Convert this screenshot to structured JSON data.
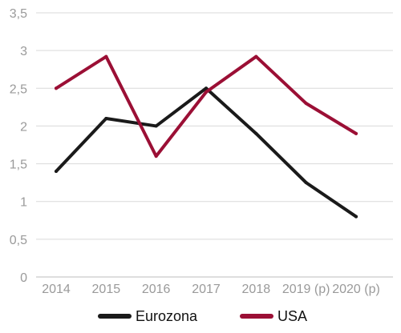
{
  "chart_data": {
    "type": "line",
    "title": "",
    "xlabel": "",
    "ylabel": "",
    "categories": [
      "2014",
      "2015",
      "2016",
      "2017",
      "2018",
      "2019 (p)",
      "2020 (p)"
    ],
    "ylim": [
      0,
      3.5
    ],
    "yticks": [
      0,
      0.5,
      1,
      1.5,
      2,
      2.5,
      3,
      3.5
    ],
    "ytick_labels": [
      "0",
      "0,5",
      "1",
      "1,5",
      "2",
      "2,5",
      "3",
      "3,5"
    ],
    "grid": true,
    "legend": "bottom",
    "series": [
      {
        "name": "Eurozona",
        "color": "#1a1a1a",
        "values": [
          1.4,
          2.1,
          2.0,
          2.5,
          1.9,
          1.25,
          0.8
        ]
      },
      {
        "name": "USA",
        "color": "#9b0f35",
        "values": [
          2.5,
          2.92,
          1.6,
          2.45,
          2.92,
          2.3,
          1.9
        ]
      }
    ]
  }
}
